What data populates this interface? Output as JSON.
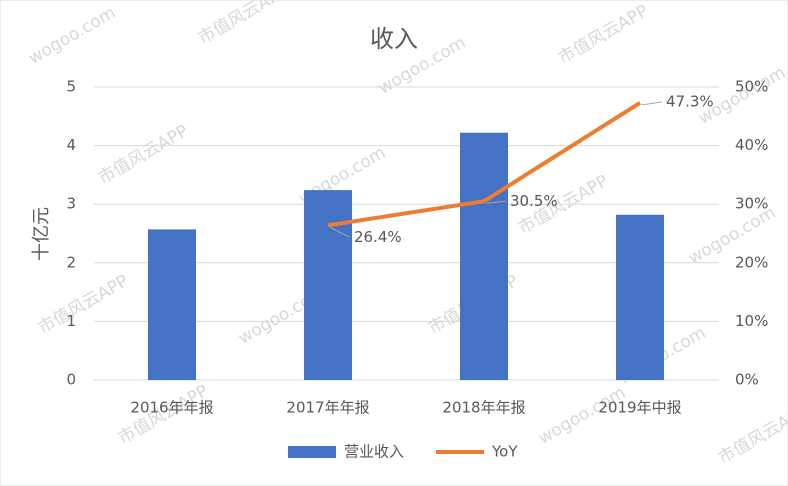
{
  "chart_data": {
    "type": "bar",
    "title": "收入",
    "y_label": "十亿元",
    "categories": [
      "2016年年报",
      "2017年年报",
      "2018年年报",
      "2019年中报"
    ],
    "series": [
      {
        "name": "营业收入",
        "type": "bar",
        "color": "#4472c4",
        "values": [
          2.57,
          3.24,
          4.22,
          2.82
        ]
      },
      {
        "name": "YoY",
        "type": "line",
        "axis": "y2",
        "color": "#ed7d31",
        "values": [
          null,
          26.4,
          30.5,
          47.3
        ],
        "value_labels": [
          null,
          "26.4%",
          "30.5%",
          "47.3%"
        ]
      }
    ],
    "ylim": [
      0,
      5
    ],
    "yticks": [
      0,
      1,
      2,
      3,
      4,
      5
    ],
    "y2lim": [
      0,
      50
    ],
    "y2ticks": [
      {
        "value": 0,
        "label": "0%"
      },
      {
        "value": 10,
        "label": "10%"
      },
      {
        "value": 20,
        "label": "20%"
      },
      {
        "value": 30,
        "label": "30%"
      },
      {
        "value": 40,
        "label": "40%"
      },
      {
        "value": 50,
        "label": "50%"
      }
    ],
    "grid": true,
    "legend": "bottom",
    "watermark": [
      "wogoo.com",
      "市值风云APP"
    ]
  }
}
